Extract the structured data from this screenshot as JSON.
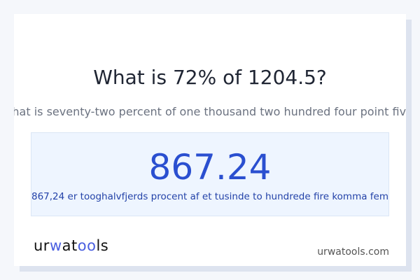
{
  "title": "What is 72% of 1204.5?",
  "subtitle": "What is seventy-two percent of one thousand two hundred four point five?",
  "result": {
    "value": "867.24",
    "words": "867,24 er tooghalvfjerds procent af et tusinde to hundrede fire komma fem"
  },
  "logo": {
    "text": "urwatools",
    "part1": "ur",
    "part2": "w",
    "part3": "at",
    "part4": "oo",
    "part5": "ls"
  },
  "site": "urwatools.com",
  "colors": {
    "accent": "#2a4fd0",
    "logo": "#4a5fe0"
  }
}
